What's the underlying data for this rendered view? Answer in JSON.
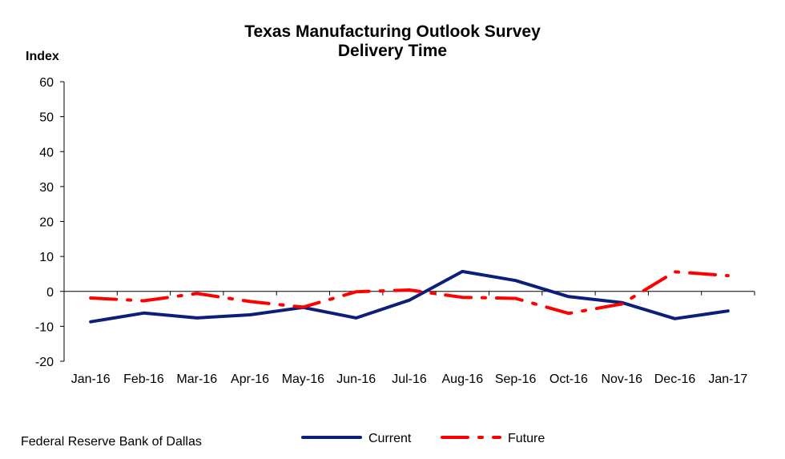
{
  "chart_data": {
    "type": "line",
    "title": "Texas Manufacturing Outlook Survey",
    "subtitle": "Delivery Time",
    "xlabel": "",
    "ylabel": "Index",
    "ylim": [
      -20,
      60
    ],
    "yticks": [
      60,
      50,
      40,
      30,
      20,
      10,
      0,
      -10,
      -20
    ],
    "ytick_labels": [
      "60",
      "50",
      "40",
      "30",
      "20",
      "10",
      "0",
      "-10",
      "-20"
    ],
    "grid": false,
    "legend_position": "bottom",
    "categories": [
      "Jan-16",
      "Feb-16",
      "Mar-16",
      "Apr-16",
      "May-16",
      "Jun-16",
      "Jul-16",
      "Aug-16",
      "Sep-16",
      "Oct-16",
      "Nov-16",
      "Dec-16",
      "Jan-17"
    ],
    "series": [
      {
        "name": "Current",
        "color": "#0b1f7a",
        "style": "solid",
        "values": [
          -8.7,
          -6.2,
          -7.6,
          -6.7,
          -4.6,
          -7.6,
          -2.5,
          5.7,
          3.1,
          -1.5,
          -3.2,
          -7.8,
          -5.6
        ]
      },
      {
        "name": "Future",
        "color": "#ff0000",
        "style": "dash-dot",
        "values": [
          -1.9,
          -2.7,
          -0.6,
          -2.9,
          -4.5,
          -0.1,
          0.4,
          -1.7,
          -2.0,
          -6.3,
          -3.6,
          5.6,
          4.5
        ]
      }
    ]
  },
  "footer": {
    "source": "Federal Reserve Bank of Dallas"
  }
}
